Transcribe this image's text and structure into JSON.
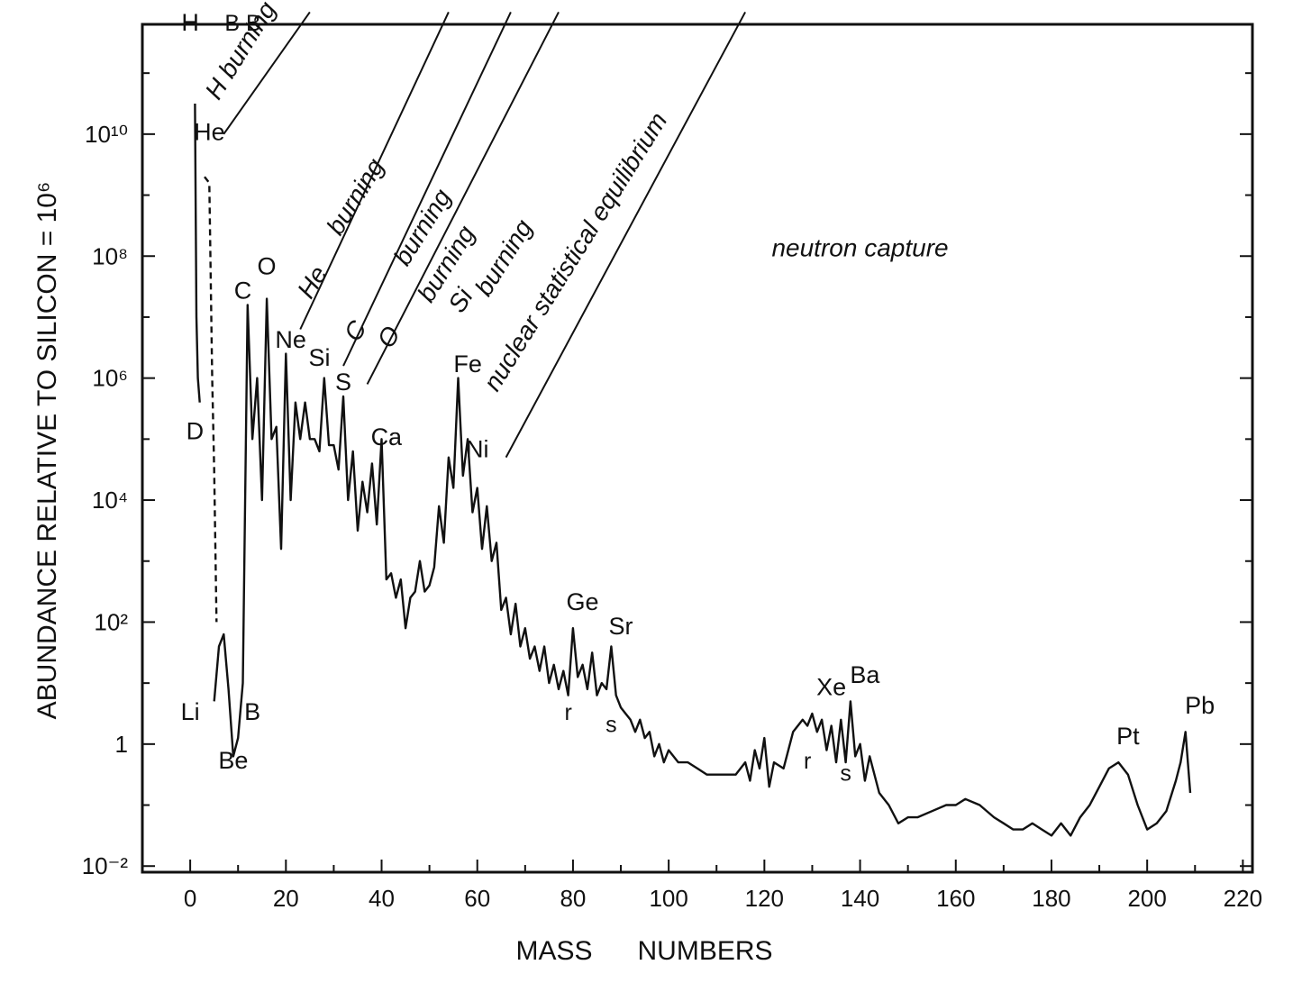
{
  "chart_data": {
    "type": "line",
    "title": "",
    "xlabel": "MASS      NUMBERS",
    "ylabel": "ABUNDANCE RELATIVE TO SILICON = 10⁶",
    "xlim": [
      -10,
      222
    ],
    "ylim_log10": [
      -2.1,
      11.8
    ],
    "yscale": "log",
    "grid": false,
    "x_ticks": [
      0,
      20,
      40,
      60,
      80,
      100,
      120,
      140,
      160,
      180,
      200,
      220
    ],
    "x_tick_labels": [
      "0",
      "20",
      "40",
      "60",
      "80",
      "100",
      "120",
      "140",
      "160",
      "180",
      "200",
      "220"
    ],
    "y_ticks_log10": [
      -2,
      0,
      2,
      4,
      6,
      8,
      10
    ],
    "y_tick_labels": [
      "10⁻²",
      "1",
      "10²",
      "10⁴",
      "10⁶",
      "10⁸",
      "10¹⁰"
    ],
    "series": [
      {
        "style": "solid",
        "points": [
          [
            1,
            10.5
          ],
          [
            1.3,
            7.0
          ],
          [
            1.6,
            6.0
          ],
          [
            2,
            5.6
          ]
        ]
      },
      {
        "style": "dashed",
        "points": [
          [
            3,
            9.3
          ],
          [
            4,
            9.2
          ],
          [
            4.6,
            6.0
          ],
          [
            5,
            4.5
          ],
          [
            5.5,
            2.0
          ]
        ]
      },
      {
        "style": "solid",
        "points": [
          [
            5,
            0.7
          ],
          [
            6,
            1.6
          ],
          [
            7,
            1.8
          ],
          [
            8,
            0.9
          ],
          [
            9,
            -0.2
          ],
          [
            10,
            0.1
          ],
          [
            11,
            1.0
          ],
          [
            12,
            7.2
          ],
          [
            13,
            5.0
          ],
          [
            14,
            6.0
          ],
          [
            15,
            4.0
          ],
          [
            16,
            7.3
          ],
          [
            17,
            5.0
          ],
          [
            18,
            5.2
          ],
          [
            19,
            3.2
          ],
          [
            20,
            6.4
          ],
          [
            21,
            4.0
          ],
          [
            22,
            5.6
          ],
          [
            23,
            5.0
          ],
          [
            24,
            5.6
          ],
          [
            25,
            5.0
          ],
          [
            26,
            5.0
          ],
          [
            27,
            4.8
          ],
          [
            28,
            6.0
          ],
          [
            29,
            4.9
          ],
          [
            30,
            4.9
          ],
          [
            31,
            4.5
          ],
          [
            32,
            5.7
          ],
          [
            33,
            4.0
          ],
          [
            34,
            4.8
          ],
          [
            35,
            3.5
          ],
          [
            36,
            4.3
          ],
          [
            37,
            3.8
          ],
          [
            38,
            4.6
          ],
          [
            39,
            3.6
          ],
          [
            40,
            5.0
          ],
          [
            41,
            2.7
          ],
          [
            42,
            2.8
          ],
          [
            43,
            2.4
          ],
          [
            44,
            2.7
          ],
          [
            45,
            1.9
          ],
          [
            46,
            2.4
          ],
          [
            47,
            2.5
          ],
          [
            48,
            3.0
          ],
          [
            49,
            2.5
          ],
          [
            50,
            2.6
          ],
          [
            51,
            2.9
          ],
          [
            52,
            3.9
          ],
          [
            53,
            3.3
          ],
          [
            54,
            4.7
          ],
          [
            55,
            4.2
          ],
          [
            56,
            6.0
          ],
          [
            57,
            4.4
          ],
          [
            58,
            5.0
          ],
          [
            59,
            3.8
          ],
          [
            60,
            4.2
          ],
          [
            61,
            3.2
          ],
          [
            62,
            3.9
          ],
          [
            63,
            3.0
          ],
          [
            64,
            3.3
          ],
          [
            65,
            2.2
          ],
          [
            66,
            2.4
          ],
          [
            67,
            1.8
          ],
          [
            68,
            2.3
          ],
          [
            69,
            1.6
          ],
          [
            70,
            1.9
          ],
          [
            71,
            1.4
          ],
          [
            72,
            1.6
          ],
          [
            73,
            1.2
          ],
          [
            74,
            1.6
          ],
          [
            75,
            1.0
          ],
          [
            76,
            1.3
          ],
          [
            77,
            0.9
          ],
          [
            78,
            1.2
          ],
          [
            79,
            0.8
          ],
          [
            80,
            1.9
          ],
          [
            81,
            1.1
          ],
          [
            82,
            1.3
          ],
          [
            83,
            0.9
          ],
          [
            84,
            1.5
          ],
          [
            85,
            0.8
          ],
          [
            86,
            1.0
          ],
          [
            87,
            0.9
          ],
          [
            88,
            1.6
          ],
          [
            89,
            0.8
          ],
          [
            90,
            0.6
          ],
          [
            91,
            0.5
          ],
          [
            92,
            0.4
          ],
          [
            93,
            0.2
          ],
          [
            94,
            0.4
          ],
          [
            95,
            0.1
          ],
          [
            96,
            0.2
          ],
          [
            97,
            -0.2
          ],
          [
            98,
            0.0
          ],
          [
            99,
            -0.3
          ],
          [
            100,
            -0.1
          ],
          [
            102,
            -0.3
          ],
          [
            104,
            -0.3
          ],
          [
            106,
            -0.4
          ],
          [
            108,
            -0.5
          ],
          [
            110,
            -0.5
          ],
          [
            112,
            -0.5
          ],
          [
            114,
            -0.5
          ],
          [
            116,
            -0.3
          ],
          [
            117,
            -0.6
          ],
          [
            118,
            -0.1
          ],
          [
            119,
            -0.4
          ],
          [
            120,
            0.1
          ],
          [
            121,
            -0.7
          ],
          [
            122,
            -0.3
          ],
          [
            124,
            -0.4
          ],
          [
            126,
            0.2
          ],
          [
            128,
            0.4
          ],
          [
            129,
            0.3
          ],
          [
            130,
            0.5
          ],
          [
            131,
            0.2
          ],
          [
            132,
            0.4
          ],
          [
            133,
            -0.1
          ],
          [
            134,
            0.3
          ],
          [
            135,
            -0.3
          ],
          [
            136,
            0.4
          ],
          [
            137,
            -0.3
          ],
          [
            138,
            0.7
          ],
          [
            139,
            -0.2
          ],
          [
            140,
            0.0
          ],
          [
            141,
            -0.6
          ],
          [
            142,
            -0.2
          ],
          [
            144,
            -0.8
          ],
          [
            146,
            -1.0
          ],
          [
            148,
            -1.3
          ],
          [
            150,
            -1.2
          ],
          [
            152,
            -1.2
          ],
          [
            155,
            -1.1
          ],
          [
            158,
            -1.0
          ],
          [
            160,
            -1.0
          ],
          [
            162,
            -0.9
          ],
          [
            165,
            -1.0
          ],
          [
            168,
            -1.2
          ],
          [
            170,
            -1.3
          ],
          [
            172,
            -1.4
          ],
          [
            174,
            -1.4
          ],
          [
            176,
            -1.3
          ],
          [
            178,
            -1.4
          ],
          [
            180,
            -1.5
          ],
          [
            182,
            -1.3
          ],
          [
            184,
            -1.5
          ],
          [
            186,
            -1.2
          ],
          [
            188,
            -1.0
          ],
          [
            190,
            -0.7
          ],
          [
            192,
            -0.4
          ],
          [
            194,
            -0.3
          ],
          [
            196,
            -0.5
          ],
          [
            198,
            -1.0
          ],
          [
            200,
            -1.4
          ],
          [
            202,
            -1.3
          ],
          [
            204,
            -1.1
          ],
          [
            206,
            -0.6
          ],
          [
            207,
            -0.3
          ],
          [
            208,
            0.2
          ],
          [
            209,
            -0.8
          ]
        ]
      }
    ],
    "element_labels": [
      {
        "text": "H",
        "x": 0,
        "y_log10": 11.7
      },
      {
        "text": "He",
        "x": 4,
        "y_log10": 9.9
      },
      {
        "text": "D",
        "x": 1,
        "y_log10": 5.0
      },
      {
        "text": "Li",
        "x": 0,
        "y_log10": 0.4
      },
      {
        "text": "Be",
        "x": 9,
        "y_log10": -0.4
      },
      {
        "text": "B",
        "x": 13,
        "y_log10": 0.4
      },
      {
        "text": "C",
        "x": 11,
        "y_log10": 7.3
      },
      {
        "text": "O",
        "x": 16,
        "y_log10": 7.7
      },
      {
        "text": "Ne",
        "x": 21,
        "y_log10": 6.5
      },
      {
        "text": "Si",
        "x": 27,
        "y_log10": 6.2
      },
      {
        "text": "S",
        "x": 32,
        "y_log10": 5.8
      },
      {
        "text": "Ca",
        "x": 41,
        "y_log10": 4.9
      },
      {
        "text": "Fe",
        "x": 58,
        "y_log10": 6.1
      },
      {
        "text": "Ni",
        "x": 60,
        "y_log10": 4.7
      },
      {
        "text": "Ge",
        "x": 82,
        "y_log10": 2.2
      },
      {
        "text": "Sr",
        "x": 90,
        "y_log10": 1.8
      },
      {
        "text": "Xe",
        "x": 134,
        "y_log10": 0.8
      },
      {
        "text": "Ba",
        "x": 141,
        "y_log10": 1.0
      },
      {
        "text": "Pt",
        "x": 196,
        "y_log10": 0.0
      },
      {
        "text": "Pb",
        "x": 211,
        "y_log10": 0.5
      }
    ],
    "annotations": [
      {
        "text": "B B",
        "x": 11,
        "y_log10": 11.7
      },
      {
        "text": "r",
        "x": 79,
        "y_log10": 0.4
      },
      {
        "text": "s",
        "x": 88,
        "y_log10": 0.2
      },
      {
        "text": "r",
        "x": 129,
        "y_log10": -0.4
      },
      {
        "text": "s",
        "x": 137,
        "y_log10": -0.6
      },
      {
        "text": "H burning",
        "x": 12,
        "y_log10": 11.3
      },
      {
        "text": "He",
        "x": 27,
        "y_log10": 7.5
      },
      {
        "text": "burning",
        "x": 36,
        "y_log10": 8.9
      },
      {
        "text": "C",
        "x": 36,
        "y_log10": 6.7
      },
      {
        "text": "burning",
        "x": 50,
        "y_log10": 8.4
      },
      {
        "text": "O",
        "x": 43,
        "y_log10": 6.6
      },
      {
        "text": "burning",
        "x": 55,
        "y_log10": 7.8
      },
      {
        "text": "Si",
        "x": 58,
        "y_log10": 7.2
      },
      {
        "text": "burning",
        "x": 67,
        "y_log10": 7.9
      },
      {
        "text": "nuclear statistical equilibrium",
        "x": 82,
        "y_log10": 8.0
      },
      {
        "text": "neutron    capture",
        "x": 140,
        "y_log10": 8.0
      }
    ],
    "boundary_lines": [
      {
        "from": [
          7,
          10.0
        ],
        "to": [
          25,
          12.0
        ]
      },
      {
        "from": [
          23,
          6.8
        ],
        "to": [
          54,
          12.0
        ]
      },
      {
        "from": [
          32,
          6.2
        ],
        "to": [
          67,
          12.0
        ]
      },
      {
        "from": [
          37,
          5.9
        ],
        "to": [
          77,
          12.0
        ]
      },
      {
        "from": [
          66,
          4.7
        ],
        "to": [
          116,
          12.0
        ]
      }
    ]
  }
}
